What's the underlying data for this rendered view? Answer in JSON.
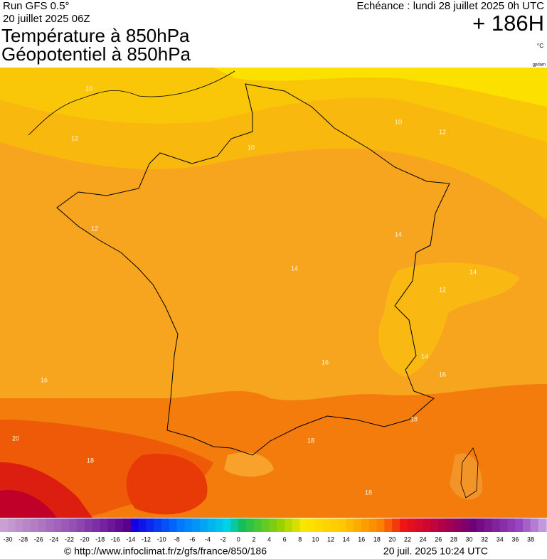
{
  "header": {
    "run": "Run GFS 0.5°",
    "run_date": "20 juillet 2025 06Z",
    "title_line1": "Température à 850hPa",
    "title_line2": "Géopotentiel à 850hPa",
    "echeance": "Echéance : lundi 28 juillet 2025 0h UTC",
    "lead": "+ 186H",
    "unit": "°C",
    "credit": "gpdam"
  },
  "contour_labels": [
    10,
    10,
    10,
    12,
    12,
    12,
    14,
    14,
    14,
    12,
    14,
    16,
    16,
    16,
    18,
    20,
    18,
    18,
    18
  ],
  "colorbar": {
    "ticks": [
      -30,
      -28,
      -26,
      -24,
      -22,
      -20,
      -18,
      -16,
      -14,
      -12,
      -10,
      -8,
      -6,
      -4,
      -2,
      0,
      2,
      4,
      6,
      8,
      10,
      12,
      14,
      16,
      18,
      20,
      22,
      24,
      26,
      28,
      30,
      32,
      34,
      36,
      38
    ]
  },
  "footer": {
    "url": "© http://www.infoclimat.fr/z/gfs/france/850/186",
    "timestamp": "20 juil. 2025 10:24 UTC"
  }
}
